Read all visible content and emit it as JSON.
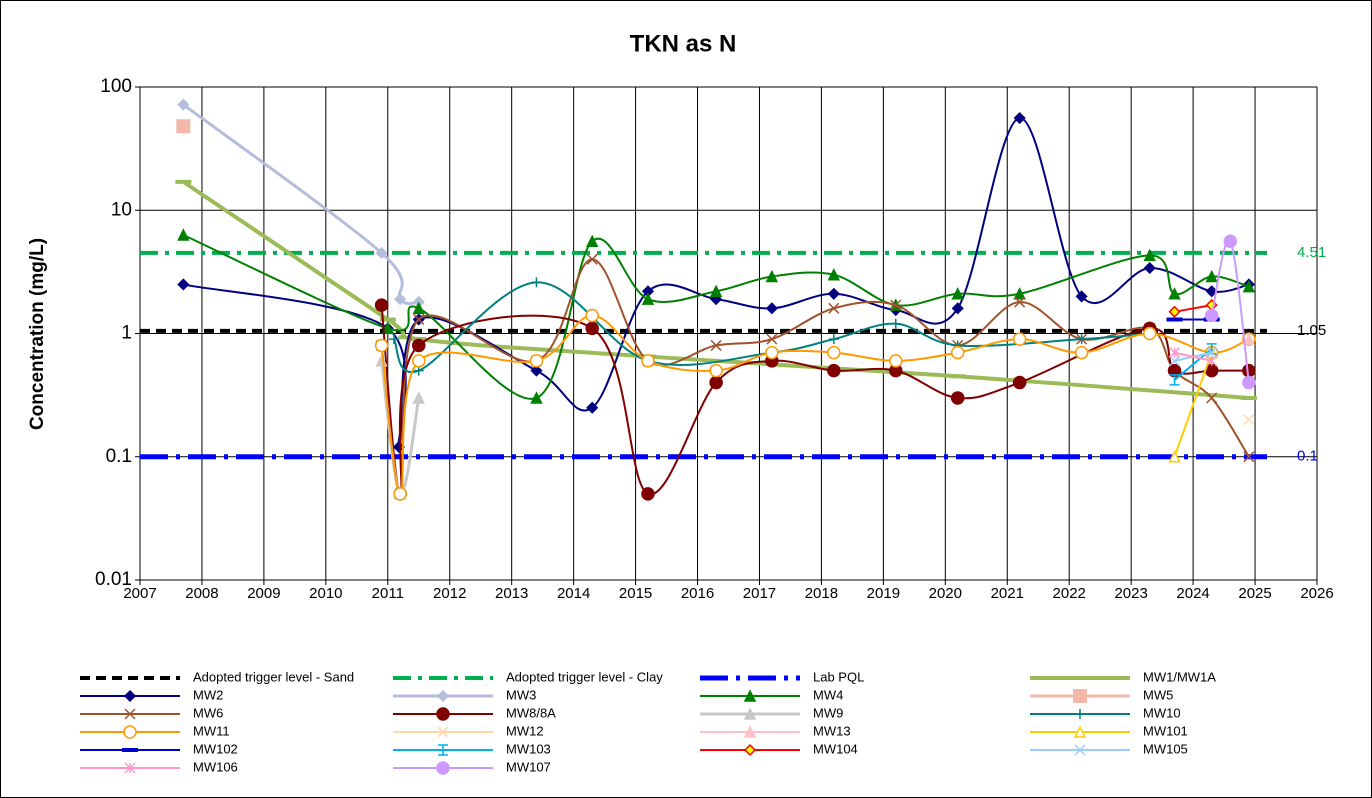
{
  "chart_data": {
    "type": "line",
    "title": "TKN as N",
    "y_label": "Concentration (mg/L)",
    "log_y": true,
    "grid": true,
    "xlim": [
      2007,
      2026
    ],
    "xticks": [
      2007,
      2008,
      2009,
      2010,
      2011,
      2012,
      2013,
      2014,
      2015,
      2016,
      2017,
      2018,
      2019,
      2020,
      2021,
      2022,
      2023,
      2024,
      2025,
      2026
    ],
    "ylim": [
      0.01,
      100
    ],
    "yticks": [
      0.01,
      0.1,
      1,
      10,
      100
    ],
    "reference_lines": [
      {
        "name": "Adopted trigger level - Sand",
        "value": 1.05,
        "color": "#000000",
        "style": "dash"
      },
      {
        "name": "Adopted trigger level - Clay",
        "value": 4.51,
        "color": "#00b050",
        "style": "dashdot"
      },
      {
        "name": "Lab PQL",
        "value": 0.1,
        "color": "#0000ff",
        "style": "dashdotthick"
      }
    ],
    "series": [
      {
        "name": "MW1/MW1A",
        "color": "#9bbb59",
        "marker": "dash",
        "width": 4,
        "x": [
          2007.7,
          2011.0,
          2011.5,
          2015.2,
          2020.2,
          2024.9
        ],
        "values": [
          17,
          1.3,
          0.9,
          0.65,
          0.45,
          0.3
        ]
      },
      {
        "name": "MW2",
        "color": "#000080",
        "marker": "diamond",
        "width": 2,
        "x": [
          2007.7,
          2011.0,
          2011.18,
          2011.5,
          2013.4,
          2014.3,
          2015.2,
          2016.3,
          2017.2,
          2018.2,
          2019.2,
          2020.2,
          2021.2,
          2022.2,
          2023.3,
          2024.3,
          2024.9
        ],
        "values": [
          2.5,
          1.1,
          0.12,
          1.3,
          0.5,
          0.25,
          2.2,
          1.9,
          1.6,
          2.1,
          1.55,
          1.6,
          56,
          2.0,
          3.4,
          2.2,
          2.5
        ]
      },
      {
        "name": "MW3",
        "color": "#b4bedc",
        "marker": "diamond",
        "width": 3,
        "x": [
          2007.7,
          2010.9,
          2011.2,
          2011.5
        ],
        "values": [
          72,
          4.5,
          1.9,
          1.8
        ]
      },
      {
        "name": "MW4",
        "color": "#008000",
        "marker": "triangle",
        "width": 2,
        "x": [
          2007.7,
          2011.0,
          2011.5,
          2013.4,
          2014.3,
          2015.2,
          2016.3,
          2017.2,
          2018.2,
          2019.2,
          2020.2,
          2021.2,
          2023.3,
          2023.7,
          2024.3,
          2024.9
        ],
        "values": [
          6.3,
          1.1,
          1.6,
          0.3,
          5.6,
          1.9,
          2.2,
          2.9,
          3.0,
          1.7,
          2.1,
          2.1,
          4.3,
          2.1,
          2.9,
          2.4
        ]
      },
      {
        "name": "MW5",
        "color": "#f4b8a8",
        "marker": "square",
        "width": 3,
        "x": [
          2007.7
        ],
        "values": [
          48
        ]
      },
      {
        "name": "MW6",
        "color": "#a0522d",
        "marker": "x",
        "width": 2,
        "x": [
          2010.9,
          2011.2,
          2011.5,
          2013.4,
          2014.3,
          2015.2,
          2016.3,
          2017.2,
          2018.2,
          2019.2,
          2020.2,
          2021.2,
          2022.2,
          2023.3,
          2023.7,
          2024.3,
          2024.9
        ],
        "values": [
          0.8,
          0.05,
          1.3,
          0.6,
          4.0,
          0.6,
          0.8,
          0.9,
          1.6,
          1.7,
          0.8,
          1.8,
          0.9,
          1.1,
          0.5,
          0.3,
          0.1
        ]
      },
      {
        "name": "MW8/8A",
        "color": "#800000",
        "marker": "circle",
        "width": 2,
        "x": [
          2010.9,
          2011.2,
          2011.5,
          2014.3,
          2015.2,
          2016.3,
          2017.2,
          2018.2,
          2019.2,
          2020.2,
          2021.2,
          2023.3,
          2023.7,
          2024.3,
          2024.9
        ],
        "values": [
          1.7,
          0.05,
          0.8,
          1.1,
          0.05,
          0.4,
          0.6,
          0.5,
          0.5,
          0.3,
          0.4,
          1.1,
          0.5,
          0.5,
          0.5
        ]
      },
      {
        "name": "MW9",
        "color": "#c8c8c8",
        "marker": "triangle",
        "width": 3,
        "x": [
          2010.9,
          2011.2,
          2011.5
        ],
        "values": [
          0.6,
          0.05,
          0.3
        ]
      },
      {
        "name": "MW10",
        "color": "#008080",
        "marker": "plus",
        "width": 2,
        "x": [
          2011.1,
          2011.5,
          2013.4,
          2015.2,
          2017.2,
          2018.2,
          2019.2,
          2020.2,
          2022.2,
          2023.3
        ],
        "values": [
          0.9,
          0.5,
          2.6,
          0.6,
          0.7,
          0.9,
          1.2,
          0.8,
          0.9,
          1.0
        ]
      },
      {
        "name": "MW11",
        "color": "#ff9900",
        "marker": "circle-open",
        "width": 2,
        "x": [
          2010.9,
          2011.2,
          2011.5,
          2013.4,
          2014.3,
          2015.2,
          2016.3,
          2017.2,
          2018.2,
          2019.2,
          2020.2,
          2021.2,
          2022.2,
          2023.3,
          2024.3,
          2024.9
        ],
        "values": [
          0.8,
          0.05,
          0.6,
          0.6,
          1.4,
          0.6,
          0.5,
          0.7,
          0.7,
          0.6,
          0.7,
          0.9,
          0.7,
          1.0,
          0.7,
          0.9
        ]
      },
      {
        "name": "MW12",
        "color": "#ffd8a8",
        "marker": "x",
        "width": 2,
        "x": [
          2024.9
        ],
        "values": [
          0.2
        ]
      },
      {
        "name": "MW13",
        "color": "#ffc0c8",
        "marker": "triangle",
        "width": 2,
        "x": [
          2024.9
        ],
        "values": [
          0.9
        ]
      },
      {
        "name": "MW101",
        "color": "#ffcc00",
        "marker": "triangle-open",
        "width": 2,
        "x": [
          2023.7,
          2024.3
        ],
        "values": [
          0.1,
          0.7
        ]
      },
      {
        "name": "MW102",
        "color": "#0000cc",
        "marker": "dash",
        "width": 2,
        "x": [
          2023.7,
          2024.3
        ],
        "values": [
          1.3,
          1.3
        ]
      },
      {
        "name": "MW103",
        "color": "#00b0f0",
        "marker": "ibeam",
        "width": 2,
        "x": [
          2023.7,
          2024.3
        ],
        "values": [
          0.42,
          0.75
        ]
      },
      {
        "name": "MW104",
        "color": "#ff0000",
        "marker": "diamond-open",
        "width": 2,
        "x": [
          2023.7,
          2024.3
        ],
        "values": [
          1.5,
          1.7
        ]
      },
      {
        "name": "MW105",
        "color": "#99ccff",
        "marker": "x",
        "width": 2,
        "x": [
          2023.7,
          2024.3
        ],
        "values": [
          0.6,
          0.7
        ]
      },
      {
        "name": "MW106",
        "color": "#ff99cc",
        "marker": "star",
        "width": 2,
        "x": [
          2023.7,
          2024.3
        ],
        "values": [
          0.7,
          0.6
        ]
      },
      {
        "name": "MW107",
        "color": "#cc99ff",
        "marker": "circle",
        "width": 2,
        "x": [
          2024.3,
          2024.6,
          2024.9
        ],
        "values": [
          1.4,
          5.6,
          0.4
        ]
      }
    ]
  }
}
